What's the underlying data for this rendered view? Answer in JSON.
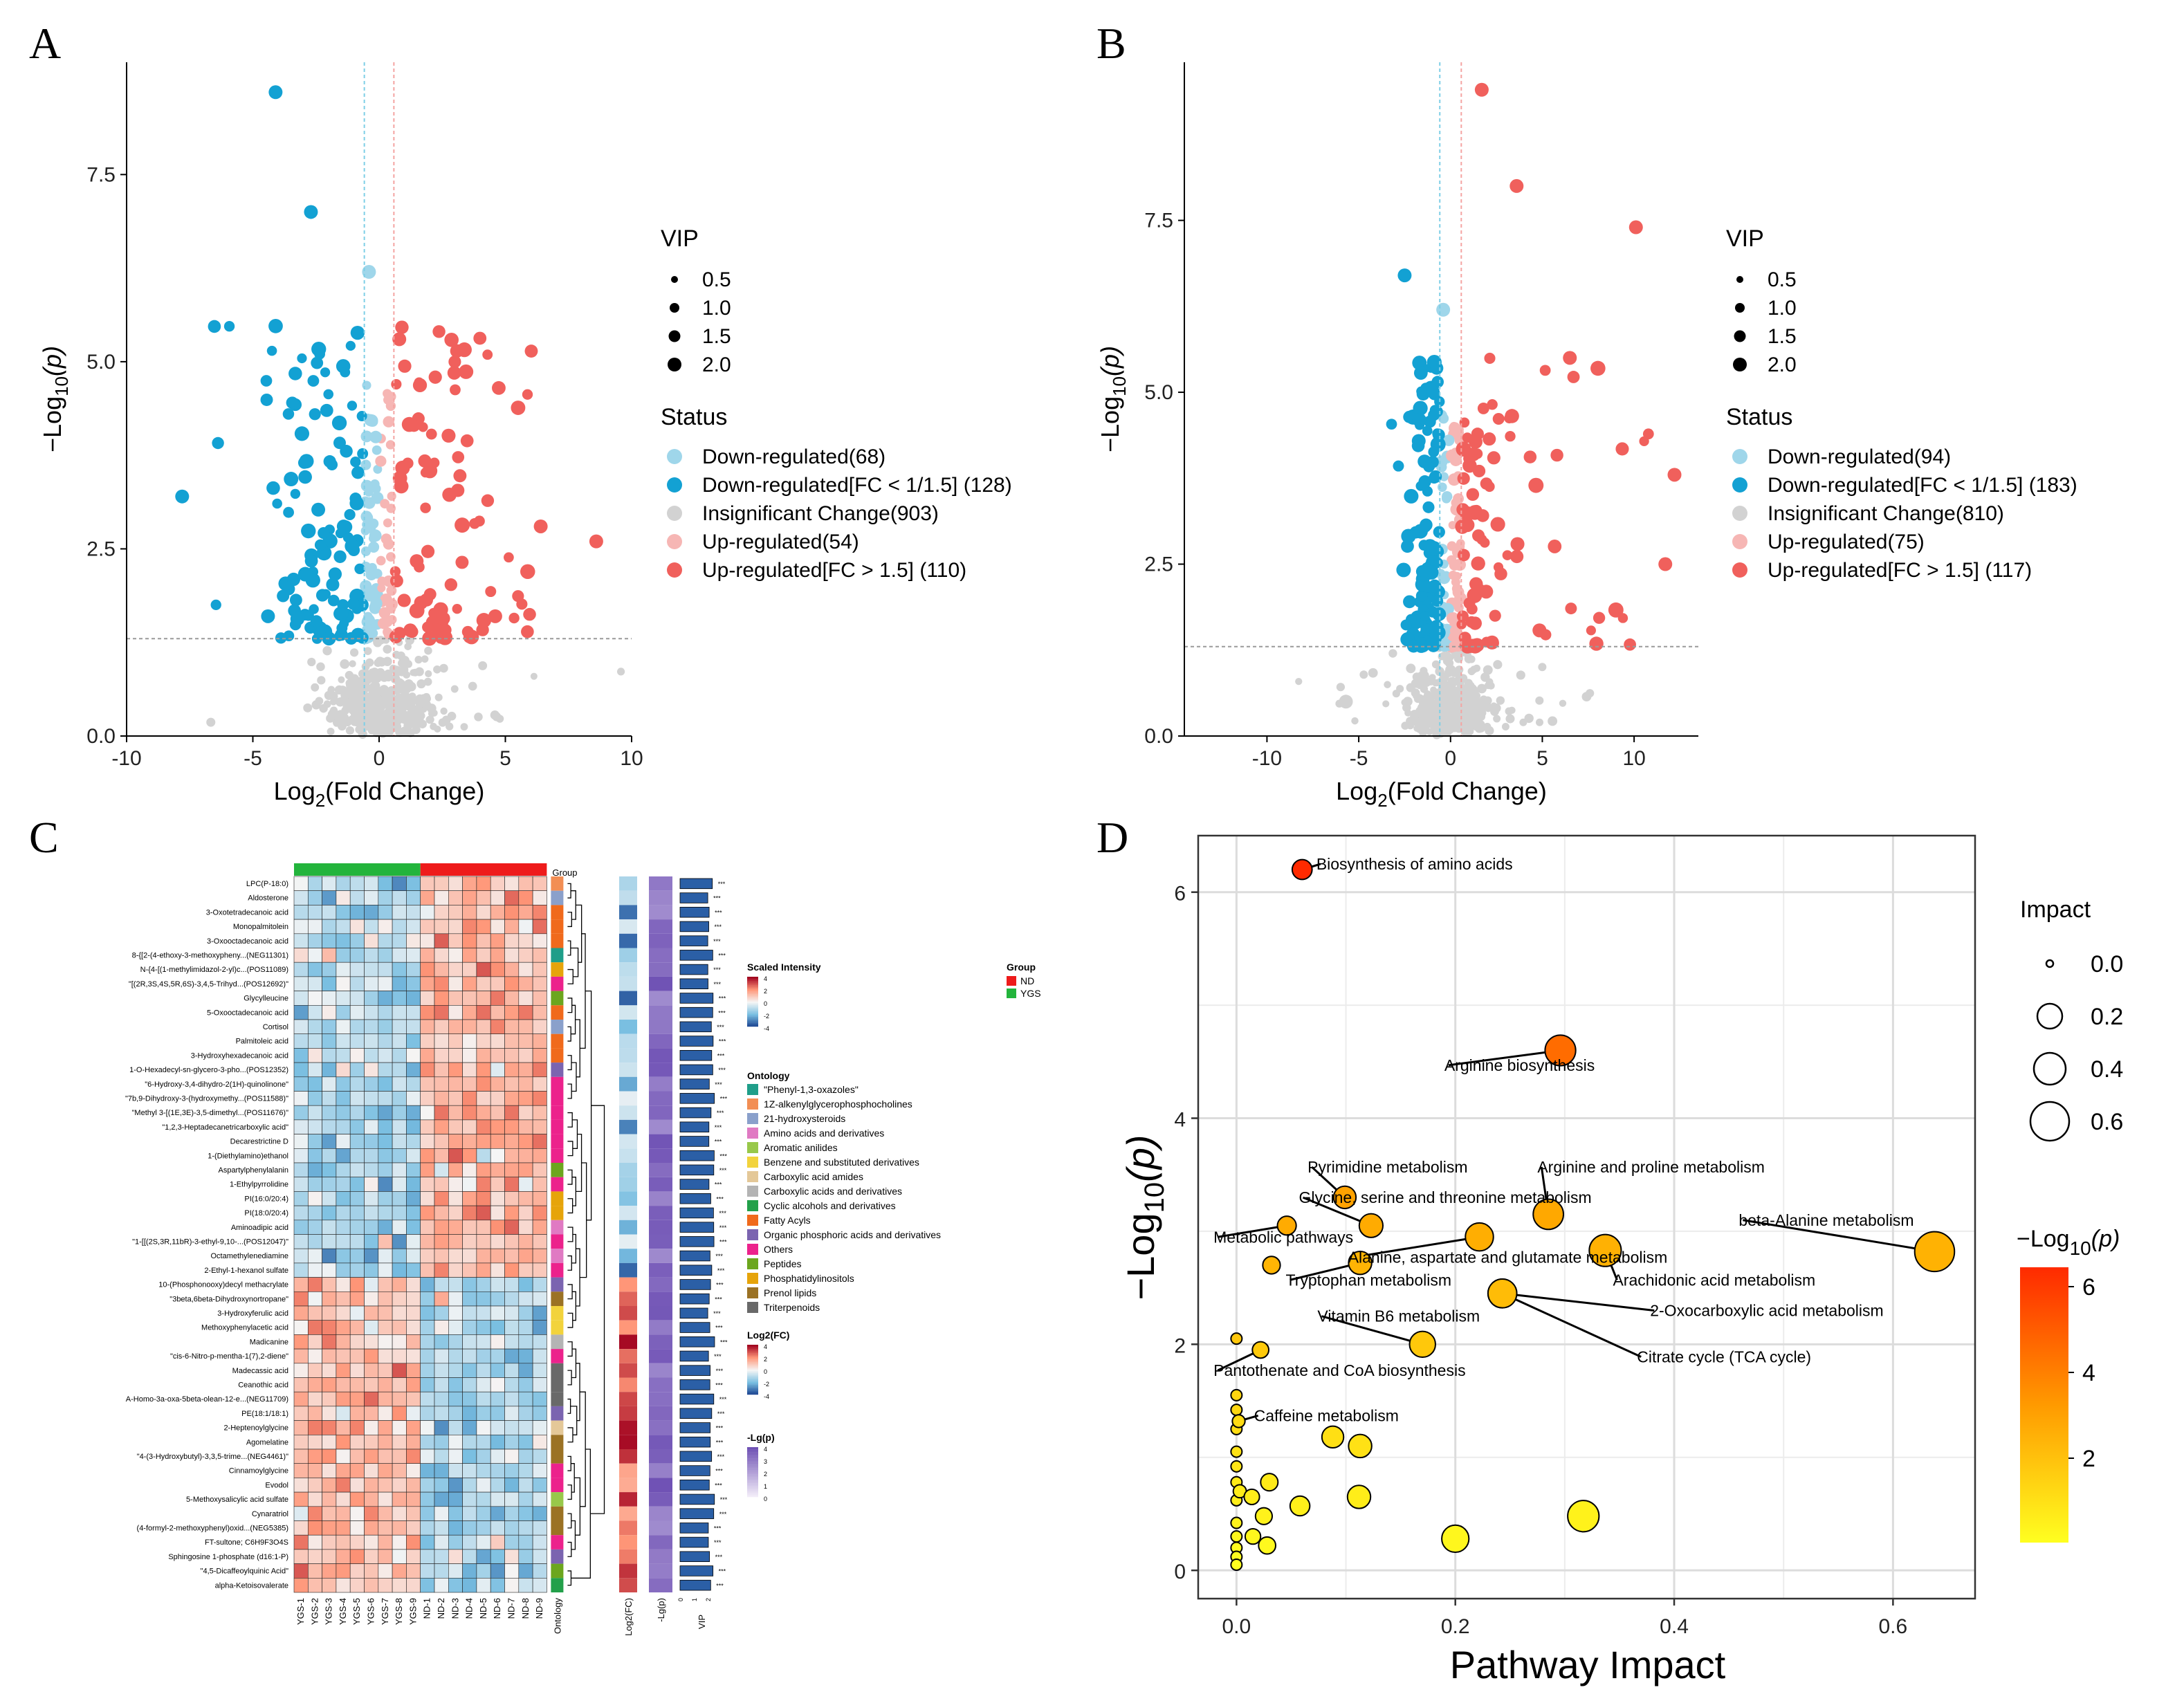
{
  "panels": {
    "A": "A",
    "B": "B",
    "C": "C",
    "D": "D"
  },
  "colors": {
    "down_light": "#9fd6ea",
    "down": "#13a1d3",
    "insig": "#d2d2d2",
    "up_light": "#f6b6b4",
    "up": "#f0605c",
    "pathway_high": "#ff2a00",
    "pathway_low": "#ffff20"
  },
  "chart_data": [
    {
      "id": "A",
      "type": "scatter",
      "xlabel_main": "Log",
      "xlabel_sub": "2",
      "xlabel_rest": "(Fold Change)",
      "ylabel_pre": "−Log",
      "ylabel_sub": "10",
      "ylabel_rest": "(p)",
      "xlim": [
        -10,
        10
      ],
      "ylim": [
        0,
        9
      ],
      "xticks": [
        -10,
        -5,
        0,
        5,
        10
      ],
      "yticks": [
        0.0,
        2.5,
        5.0,
        7.5
      ],
      "ytick_labels": [
        "0.0",
        "2.5",
        "5.0",
        "7.5"
      ],
      "xtick_labels": [
        "-10",
        "-5",
        "0",
        "5",
        "10"
      ],
      "vlines": [
        -0.585,
        0.585
      ],
      "hline": 1.3,
      "legend": {
        "vip_title": "VIP",
        "vip_labels": [
          "0.5",
          "1.0",
          "1.5",
          "2.0"
        ],
        "status_title": "Status",
        "status_labels": [
          "Down-regulated(68)",
          "Down-regulated[FC < 1/1.5] (128)",
          "Insignificant Change(903)",
          "Up-regulated(54)",
          "Up-regulated[FC > 1.5] (110)"
        ]
      },
      "highlight_points": [
        {
          "x": -4.1,
          "y": 8.6,
          "s": "down"
        },
        {
          "x": -2.7,
          "y": 7.0,
          "s": "down"
        },
        {
          "x": -7.8,
          "y": 3.2,
          "s": "down"
        },
        {
          "x": -4.4,
          "y": 1.6,
          "s": "down"
        },
        {
          "x": -0.4,
          "y": 6.2,
          "s": "down_light"
        },
        {
          "x": 8.6,
          "y": 2.6,
          "s": "up"
        },
        {
          "x": 6.4,
          "y": 2.8,
          "s": "up"
        },
        {
          "x": 4.6,
          "y": 1.6,
          "s": "up"
        },
        {
          "x": 0.8,
          "y": 5.3,
          "s": "up"
        }
      ]
    },
    {
      "id": "B",
      "type": "scatter",
      "xlabel_main": "Log",
      "xlabel_sub": "2",
      "xlabel_rest": "(Fold Change)",
      "ylabel_pre": "−Log",
      "ylabel_sub": "10",
      "ylabel_rest": "(p)",
      "xlim": [
        -14.5,
        13.5
      ],
      "ylim": [
        0,
        9.8
      ],
      "xticks": [
        -10,
        -5,
        0,
        5,
        10
      ],
      "yticks": [
        0.0,
        2.5,
        5.0,
        7.5
      ],
      "ytick_labels": [
        "0.0",
        "2.5",
        "5.0",
        "7.5"
      ],
      "xtick_labels": [
        "-10",
        "-5",
        "0",
        "5",
        "10"
      ],
      "vlines": [
        -0.585,
        0.585
      ],
      "hline": 1.3,
      "legend": {
        "vip_title": "VIP",
        "vip_labels": [
          "0.5",
          "1.0",
          "1.5",
          "2.0"
        ],
        "status_title": "Status",
        "status_labels": [
          "Down-regulated(94)",
          "Down-regulated[FC < 1/1.5] (183)",
          "Insignificant Change(810)",
          "Up-regulated(75)",
          "Up-regulated[FC > 1.5] (117)"
        ]
      },
      "highlight_points": [
        {
          "x": 1.7,
          "y": 9.4,
          "s": "up"
        },
        {
          "x": 10.1,
          "y": 7.4,
          "s": "up"
        },
        {
          "x": 3.6,
          "y": 8.0,
          "s": "up"
        },
        {
          "x": 6.5,
          "y": 5.5,
          "s": "up"
        },
        {
          "x": 11.7,
          "y": 2.5,
          "s": "up"
        },
        {
          "x": 12.2,
          "y": 3.8,
          "s": "up"
        },
        {
          "x": -2.5,
          "y": 6.7,
          "s": "down"
        },
        {
          "x": -0.4,
          "y": 6.2,
          "s": "down_light"
        },
        {
          "x": -5.7,
          "y": 0.5,
          "s": "insig"
        }
      ]
    },
    {
      "id": "C",
      "type": "heatmap",
      "group_title": "Group",
      "groups": [
        "ND",
        "YGS"
      ],
      "samples": [
        "YGS-1",
        "YGS-2",
        "YGS-3",
        "YGS-4",
        "YGS-5",
        "YGS-6",
        "YGS-7",
        "YGS-8",
        "YGS-9",
        "ND-1",
        "ND-2",
        "ND-3",
        "ND-4",
        "ND-5",
        "ND-6",
        "ND-7",
        "ND-8",
        "ND-9"
      ],
      "col_labels_extra": [
        "Ontology",
        "Log2(FC)",
        "-Lg(p)",
        "VIP"
      ],
      "vip_ticks": [
        "0",
        "1",
        "2"
      ],
      "sig_mark": "***",
      "rows": [
        "LPC(P-18:0)",
        "Aldosterone",
        "3-Oxotetradecanoic acid",
        "Monopalmitolein",
        "3-Oxooctadecanoic acid",
        "8-{[2-(4-ethoxy-3-methoxypheny...(NEG11301)",
        "N-{4-[(1-methylimidazol-2-yl)c...(POS11089)",
        "\"[(2R,3S,4S,5R,6S)-3,4,5-Trihyd...(POS12692)\"",
        "Glycylleucine",
        "5-Oxooctadecanoic acid",
        "Cortisol",
        "Palmitoleic acid",
        "3-Hydroxyhexadecanoic acid",
        "1-O-Hexadecyl-sn-glycero-3-pho...(POS12352)",
        "\"6-Hydroxy-3,4-dihydro-2(1H)-quinolinone\"",
        "\"7b,9-Dihydroxy-3-(hydroxymethy...(POS11588)\"",
        "\"Methyl 3-[(1E,3E)-3,5-dimethyl...(POS11676)\"",
        "\"1,2,3-Heptadecanetricarboxylic acid\"",
        "Decarestrictine D",
        "1-(Diethylamino)ethanol",
        "Aspartylphenylalanin",
        "1-Ethylpyrrolidine",
        "PI(16:0/20:4)",
        "PI(18:0/20:4)",
        "Aminoadipic acid",
        "\"1-[[(2S,3R,11bR)-3-ethyl-9,10-...(POS12047)\"",
        "Octamethylenediamine",
        "2-Ethyl-1-hexanol sulfate",
        "10-(Phosphonooxy)decyl methacrylate",
        "\"3beta,6beta-Dihydroxynortropane\"",
        "3-Hydroxyferulic acid",
        "Methoxyphenylacetic acid",
        "Madicanine",
        "\"cis-6-Nitro-p-mentha-1(7),2-diene\"",
        "Madecassic acid",
        "Ceanothic acid",
        "A-Homo-3a-oxa-5beta-olean-12-e...(NEG11709)",
        "PE(18:1/18:1)",
        "2-Heptenoylglycine",
        "Agomelatine",
        "\"4-(3-Hydroxybutyl)-3,3,5-trime...(NEG4461)\"",
        "Cinnamoylglycine",
        "Evodol",
        "5-Methoxysalicylic acid sulfate",
        "Cynaratriol",
        "(4-formyl-2-methoxyphenyl)oxid...(NEG5385)",
        "FT-sultone; C6H9F3O4S",
        "Sphingosine 1-phosphate (d16:1-P)",
        "\"4,5-Dicaffeoylquinic Acid\"",
        "alpha-Ketoisovalerate"
      ],
      "scaled_intensity": {
        "title": "Scaled Intensity",
        "ticks": [
          "4",
          "2",
          "0",
          "-2",
          "-4"
        ]
      },
      "ontology": {
        "title": "Ontology",
        "items": [
          {
            "label": "\"Phenyl-1,3-oxazoles\"",
            "color": "#1f9e89"
          },
          {
            "label": "1Z-alkenylglycerophosphocholines",
            "color": "#f28e54"
          },
          {
            "label": "21-hydroxysteroids",
            "color": "#8aa0cb"
          },
          {
            "label": "Amino acids and derivatives",
            "color": "#e07ac3"
          },
          {
            "label": "Aromatic anilides",
            "color": "#98c84a"
          },
          {
            "label": "Benzene and substituted derivatives",
            "color": "#f2d33c"
          },
          {
            "label": "Carboxylic acid amides",
            "color": "#e4c898"
          },
          {
            "label": "Carboxylic acids and derivatives",
            "color": "#b4b4b4"
          },
          {
            "label": "Cyclic alcohols and derivatives",
            "color": "#23a04a"
          },
          {
            "label": "Fatty Acyls",
            "color": "#f06a1c"
          },
          {
            "label": "Organic phosphoric acids and derivatives",
            "color": "#7b64b0"
          },
          {
            "label": "Others",
            "color": "#ec228c"
          },
          {
            "label": "Peptides",
            "color": "#6ca61e"
          },
          {
            "label": "Phosphatidylinositols",
            "color": "#e6a40a"
          },
          {
            "label": "Prenol lipids",
            "color": "#9b7224"
          },
          {
            "label": "Triterpenoids",
            "color": "#696969"
          }
        ]
      },
      "log2fc_legend": {
        "title": "Log2(FC)",
        "ticks": [
          "4",
          "2",
          "0",
          "-2",
          "-4"
        ]
      },
      "lgp_legend": {
        "title": "-Lg(p)",
        "ticks": [
          "4",
          "3",
          "2",
          "1",
          "0"
        ]
      }
    },
    {
      "id": "D",
      "type": "scatter",
      "xlabel": "Pathway Impact",
      "ylabel": "−Log₁₀(p)",
      "ylabel_pre": "−Log",
      "ylabel_sub": "10",
      "ylabel_rest": "(p)",
      "xlim": [
        -0.035,
        0.675
      ],
      "ylim": [
        -0.25,
        6.5
      ],
      "xticks": [
        0.0,
        0.2,
        0.4,
        0.6
      ],
      "xtick_labels": [
        "0.0",
        "0.2",
        "0.4",
        "0.6"
      ],
      "yticks": [
        0,
        2,
        4,
        6
      ],
      "ytick_labels": [
        "0",
        "2",
        "4",
        "6"
      ],
      "legend": {
        "impact_title": "Impact",
        "impact_labels": [
          "0.0",
          "0.2",
          "0.4",
          "0.6"
        ],
        "color_title_pre": "−Log",
        "color_title_sub": "10",
        "color_title_rest": "(p)",
        "color_ticks": [
          "6",
          "4",
          "2"
        ]
      },
      "points": [
        {
          "label": "Biosynthesis of amino acids",
          "x": 0.06,
          "y": 6.2,
          "lx": 0.073,
          "ly": 6.2
        },
        {
          "label": "Arginine biosynthesis",
          "x": 0.296,
          "y": 4.6,
          "lx": 0.19,
          "ly": 4.42
        },
        {
          "label": "Pyrimidine metabolism",
          "x": 0.099,
          "y": 3.3,
          "lx": 0.065,
          "ly": 3.52
        },
        {
          "label": "Arginine and proline metabolism",
          "x": 0.285,
          "y": 3.15,
          "lx": 0.275,
          "ly": 3.52
        },
        {
          "label": "Glycine, serine and threonine metabolism",
          "x": 0.123,
          "y": 3.05,
          "lx": 0.057,
          "ly": 3.25
        },
        {
          "label": "Metabolic pathways",
          "x": 0.046,
          "y": 3.05,
          "lx": -0.021,
          "ly": 2.9
        },
        {
          "label": "Alanine, aspartate and glutamate metabolism",
          "x": 0.222,
          "y": 2.95,
          "lx": 0.102,
          "ly": 2.72
        },
        {
          "label": "beta-Alanine metabolism",
          "x": 0.638,
          "y": 2.82,
          "lx": 0.459,
          "ly": 3.05
        },
        {
          "label": "Arachidonic acid metabolism",
          "x": 0.337,
          "y": 2.83,
          "lx": 0.344,
          "ly": 2.52
        },
        {
          "label": "Tryptophan metabolism",
          "x": 0.113,
          "y": 2.72,
          "lx": 0.045,
          "ly": 2.52
        },
        {
          "label": "2-Oxocarboxylic acid metabolism",
          "x": 0.243,
          "y": 2.45,
          "lx": 0.378,
          "ly": 2.25
        },
        {
          "label": "Vitamin B6 metabolism",
          "x": 0.17,
          "y": 2.0,
          "lx": 0.074,
          "ly": 2.2
        },
        {
          "label": "Citrate cycle (TCA cycle)",
          "x": 0.243,
          "y": 2.45,
          "lx": 0.366,
          "ly": 1.84
        },
        {
          "label": "Pantothenate and CoA biosynthesis",
          "x": 0.022,
          "y": 1.95,
          "lx": -0.021,
          "ly": 1.72
        },
        {
          "label": "Caffeine metabolism",
          "x": 0.002,
          "y": 1.32,
          "lx": 0.016,
          "ly": 1.32
        }
      ]
    }
  ]
}
